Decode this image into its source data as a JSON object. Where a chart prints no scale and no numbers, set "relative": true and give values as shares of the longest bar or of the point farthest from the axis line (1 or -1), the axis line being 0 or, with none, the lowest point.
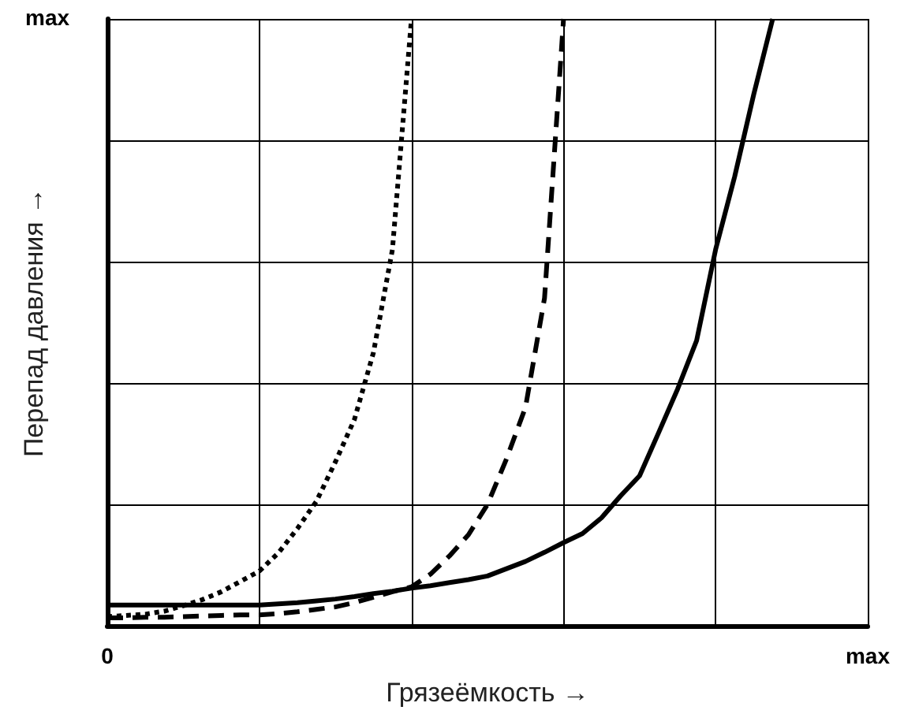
{
  "chart_data": {
    "type": "line",
    "xlabel": "Грязеёмкость →",
    "ylabel": "Перепад давления →",
    "relative": true,
    "annotations": [
      "max"
    ],
    "categories": [
      "0",
      null,
      null,
      null,
      null,
      null,
      null,
      null,
      null,
      null,
      null,
      null,
      null,
      null,
      null,
      null,
      null,
      null,
      null,
      null,
      null,
      null,
      null,
      null,
      null,
      null,
      null,
      null,
      null,
      null,
      null,
      null,
      null,
      null,
      null,
      null,
      null,
      null,
      null,
      null,
      "max"
    ],
    "grid": true,
    "marker": "none",
    "series": [
      {
        "color": "#000000",
        "line_style": "dotted",
        "values": [
          0.015,
          0.017,
          0.019,
          0.024,
          0.033,
          0.043,
          0.056,
          0.073,
          0.09,
          0.12,
          0.16,
          0.205,
          0.27,
          0.34,
          0.45,
          0.62,
          1,
          null,
          null,
          null,
          null,
          null,
          null,
          null,
          null,
          null,
          null,
          null,
          null,
          null,
          null,
          null,
          null,
          null,
          null,
          null,
          null,
          null,
          null,
          null,
          null
        ]
      },
      {
        "color": "#000000",
        "line_style": "dashed",
        "values": [
          0.013,
          0.013,
          0.014,
          0.014,
          0.015,
          0.016,
          0.017,
          0.018,
          0.018,
          0.02,
          0.023,
          0.027,
          0.031,
          0.038,
          0.047,
          0.056,
          0.064,
          0.085,
          0.115,
          0.15,
          0.2,
          0.275,
          0.36,
          0.54,
          1,
          null,
          null,
          null,
          null,
          null,
          null,
          null,
          null,
          null,
          null,
          null,
          null,
          null,
          null,
          null,
          null
        ]
      },
      {
        "color": "#000000",
        "line_style": "solid",
        "values": [
          0.034,
          0.034,
          0.034,
          0.034,
          0.034,
          0.034,
          0.034,
          0.034,
          0.034,
          0.036,
          0.038,
          0.041,
          0.044,
          0.048,
          0.053,
          0.057,
          0.062,
          0.066,
          0.071,
          0.076,
          0.082,
          0.094,
          0.106,
          0.121,
          0.137,
          0.152,
          0.178,
          0.214,
          0.247,
          0.318,
          0.39,
          0.47,
          0.62,
          0.74,
          0.875,
          1,
          null,
          null,
          null,
          null,
          null
        ]
      }
    ]
  }
}
